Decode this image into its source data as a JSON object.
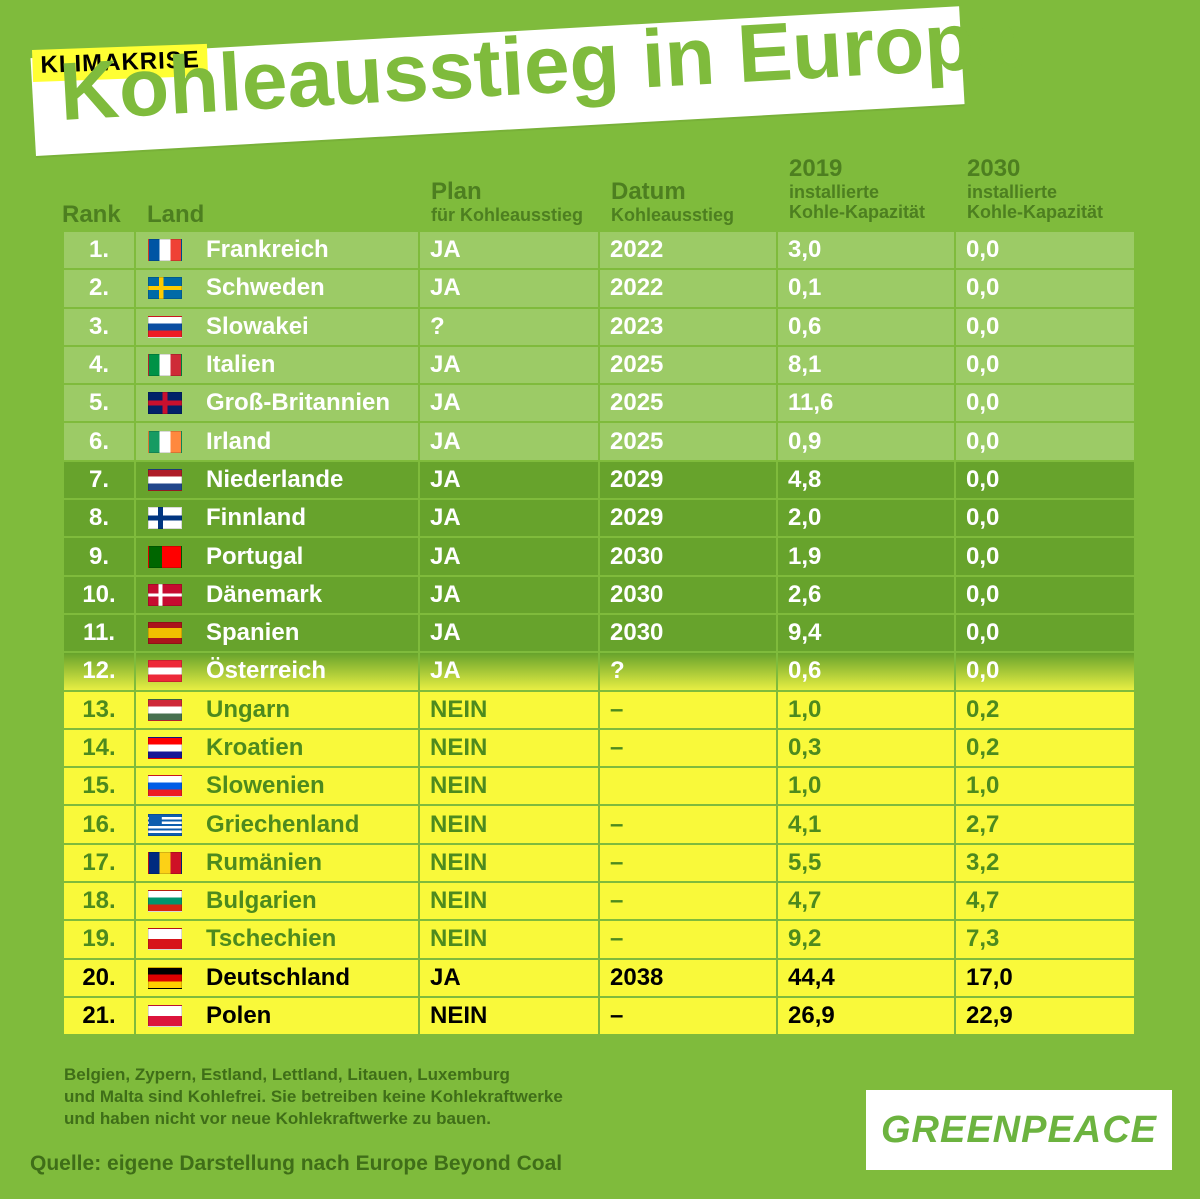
{
  "tag": "KLIMAKRISE",
  "title": "Kohleausstieg in Europa",
  "headers": {
    "rank": "Rank",
    "land": "Land",
    "plan": "Plan",
    "plan_sub": "für Kohleausstieg",
    "datum": "Datum",
    "datum_sub": "Kohleausstieg",
    "cap2019": "2019",
    "cap2019_sub1": "installierte",
    "cap2019_sub2": "Kohle-Kapazität",
    "cap2030": "2030",
    "cap2030_sub1": "installierte",
    "cap2030_sub2": "Kohle-Kapazität"
  },
  "rows": [
    {
      "rank": "1.",
      "land": "Frankreich",
      "plan": "JA",
      "datum": "2022",
      "cap2019": "3,0",
      "cap2030": "0,0",
      "group": 1,
      "flag": "france-flag-icon"
    },
    {
      "rank": "2.",
      "land": "Schweden",
      "plan": "JA",
      "datum": "2022",
      "cap2019": "0,1",
      "cap2030": "0,0",
      "group": 1,
      "flag": "sweden-flag-icon"
    },
    {
      "rank": "3.",
      "land": "Slowakei",
      "plan": "?",
      "datum": "2023",
      "cap2019": "0,6",
      "cap2030": "0,0",
      "group": 1,
      "flag": "slovakia-flag-icon"
    },
    {
      "rank": "4.",
      "land": "Italien",
      "plan": "JA",
      "datum": "2025",
      "cap2019": "8,1",
      "cap2030": "0,0",
      "group": 1,
      "flag": "italy-flag-icon"
    },
    {
      "rank": "5.",
      "land": "Groß-Britannien",
      "plan": "JA",
      "datum": "2025",
      "cap2019": "11,6",
      "cap2030": "0,0",
      "group": 1,
      "flag": "uk-flag-icon"
    },
    {
      "rank": "6.",
      "land": "Irland",
      "plan": "JA",
      "datum": "2025",
      "cap2019": "0,9",
      "cap2030": "0,0",
      "group": 1,
      "flag": "ireland-flag-icon"
    },
    {
      "rank": "7.",
      "land": "Niederlande",
      "plan": "JA",
      "datum": "2029",
      "cap2019": "4,8",
      "cap2030": "0,0",
      "group": 2,
      "flag": "netherlands-flag-icon"
    },
    {
      "rank": "8.",
      "land": "Finnland",
      "plan": "JA",
      "datum": "2029",
      "cap2019": "2,0",
      "cap2030": "0,0",
      "group": 2,
      "flag": "finland-flag-icon"
    },
    {
      "rank": "9.",
      "land": "Portugal",
      "plan": "JA",
      "datum": "2030",
      "cap2019": "1,9",
      "cap2030": "0,0",
      "group": 2,
      "flag": "portugal-flag-icon"
    },
    {
      "rank": "10.",
      "land": "Dänemark",
      "plan": "JA",
      "datum": "2030",
      "cap2019": "2,6",
      "cap2030": "0,0",
      "group": 2,
      "flag": "denmark-flag-icon"
    },
    {
      "rank": "11.",
      "land": "Spanien",
      "plan": "JA",
      "datum": "2030",
      "cap2019": "9,4",
      "cap2030": "0,0",
      "group": 2,
      "flag": "spain-flag-icon"
    },
    {
      "rank": "12.",
      "land": "Österreich",
      "plan": "JA",
      "datum": "?",
      "cap2019": "0,6",
      "cap2030": "0,0",
      "group": 3,
      "flag": "austria-flag-icon"
    },
    {
      "rank": "13.",
      "land": "Ungarn",
      "plan": "NEIN",
      "datum": "–",
      "cap2019": "1,0",
      "cap2030": "0,2",
      "group": 4,
      "flag": "hungary-flag-icon"
    },
    {
      "rank": "14.",
      "land": "Kroatien",
      "plan": "NEIN",
      "datum": "–",
      "cap2019": "0,3",
      "cap2030": "0,2",
      "group": 4,
      "flag": "croatia-flag-icon"
    },
    {
      "rank": "15.",
      "land": "Slowenien",
      "plan": "NEIN",
      "datum": "",
      "cap2019": "1,0",
      "cap2030": "1,0",
      "group": 4,
      "flag": "slovenia-flag-icon"
    },
    {
      "rank": "16.",
      "land": "Griechenland",
      "plan": "NEIN",
      "datum": "–",
      "cap2019": "4,1",
      "cap2030": "2,7",
      "group": 4,
      "flag": "greece-flag-icon"
    },
    {
      "rank": "17.",
      "land": "Rumänien",
      "plan": "NEIN",
      "datum": "–",
      "cap2019": "5,5",
      "cap2030": "3,2",
      "group": 4,
      "flag": "romania-flag-icon"
    },
    {
      "rank": "18.",
      "land": "Bulgarien",
      "plan": "NEIN",
      "datum": "–",
      "cap2019": "4,7",
      "cap2030": "4,7",
      "group": 4,
      "flag": "bulgaria-flag-icon"
    },
    {
      "rank": "19.",
      "land": "Tschechien",
      "plan": "NEIN",
      "datum": "–",
      "cap2019": "9,2",
      "cap2030": "7,3",
      "group": 4,
      "flag": "czechia-flag-icon"
    },
    {
      "rank": "20.",
      "land": "Deutschland",
      "plan": "JA",
      "datum": "2038",
      "cap2019": "44,4",
      "cap2030": "17,0",
      "group": 5,
      "flag": "germany-flag-icon"
    },
    {
      "rank": "21.",
      "land": "Polen",
      "plan": "NEIN",
      "datum": "–",
      "cap2019": "26,9",
      "cap2030": "22,9",
      "group": 5,
      "flag": "poland-flag-icon"
    }
  ],
  "note": "Belgien, Zypern, Estland, Lettland, Litauen, Luxemburg\nund Malta sind Kohlefrei. Sie betreiben keine Kohlekraftwerke\nund haben nicht vor neue Kohlekraftwerke zu bauen.",
  "source": "Quelle: eigene Darstellung nach Europe Beyond Coal",
  "logo": "GREENPEACE",
  "colors": {
    "background": "#7fbb3c",
    "header_text": "#4d7f20",
    "light_green_rows": "#9ccb66",
    "dark_green_rows": "#67a32c",
    "yellow_rows": "#f9f93a",
    "yellow_text": "#4d8a1e"
  }
}
